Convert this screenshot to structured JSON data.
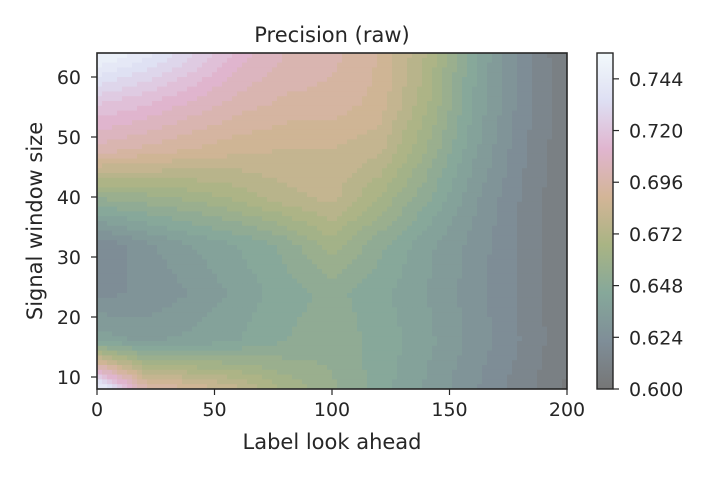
{
  "chart_data": {
    "type": "heatmap",
    "subtype": "filled-contour",
    "title": "Precision (raw)",
    "xlabel": "Label look ahead",
    "ylabel": "Signal window size",
    "xlim": [
      0,
      200
    ],
    "ylim": [
      8,
      64
    ],
    "xticks": [
      0,
      50,
      100,
      150,
      200
    ],
    "yticks": [
      10,
      20,
      30,
      40,
      50,
      60
    ],
    "x": [
      0,
      20,
      40,
      60,
      80,
      100,
      120,
      140,
      160,
      180,
      200
    ],
    "y": [
      8,
      16,
      24,
      32,
      40,
      48,
      56,
      64
    ],
    "z": [
      [
        0.752,
        0.7,
        0.69,
        0.68,
        0.665,
        0.655,
        0.645,
        0.635,
        0.625,
        0.615,
        0.605
      ],
      [
        0.64,
        0.635,
        0.638,
        0.642,
        0.648,
        0.652,
        0.646,
        0.638,
        0.628,
        0.618,
        0.607
      ],
      [
        0.622,
        0.625,
        0.63,
        0.638,
        0.645,
        0.65,
        0.644,
        0.636,
        0.627,
        0.617,
        0.606
      ],
      [
        0.618,
        0.628,
        0.636,
        0.642,
        0.65,
        0.664,
        0.65,
        0.638,
        0.628,
        0.617,
        0.606
      ],
      [
        0.655,
        0.658,
        0.662,
        0.668,
        0.676,
        0.68,
        0.666,
        0.65,
        0.632,
        0.618,
        0.606
      ],
      [
        0.7,
        0.695,
        0.69,
        0.686,
        0.684,
        0.684,
        0.68,
        0.66,
        0.638,
        0.62,
        0.607
      ],
      [
        0.722,
        0.716,
        0.708,
        0.7,
        0.695,
        0.694,
        0.688,
        0.668,
        0.642,
        0.622,
        0.607
      ],
      [
        0.752,
        0.742,
        0.728,
        0.712,
        0.702,
        0.698,
        0.69,
        0.672,
        0.644,
        0.622,
        0.606
      ]
    ],
    "colorbar": {
      "min": 0.6,
      "max": 0.756,
      "ticks": [
        "0.600",
        "0.624",
        "0.648",
        "0.672",
        "0.696",
        "0.720",
        "0.744"
      ]
    },
    "colormap": [
      "#767676",
      "#7f8e98",
      "#86a89a",
      "#a9b484",
      "#d3b597",
      "#e0b5cf",
      "#dedff3",
      "#f2f9fb"
    ],
    "grid": false
  }
}
